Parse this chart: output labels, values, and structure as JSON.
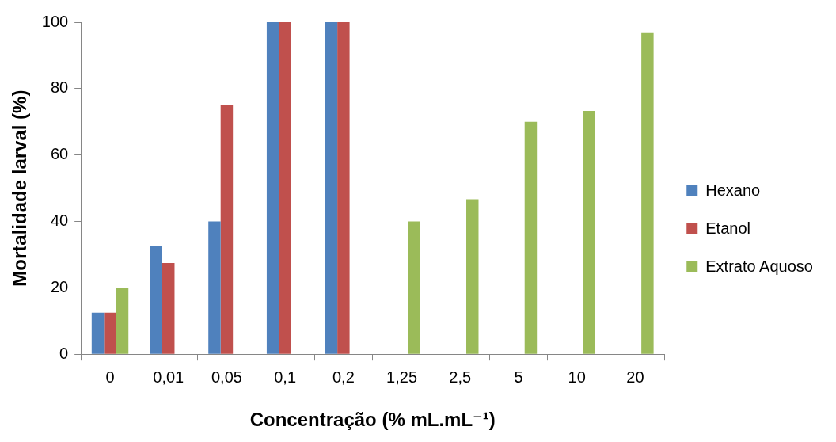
{
  "chart_data": {
    "type": "bar",
    "xlabel": "Concentração (% mL.mL⁻¹)",
    "ylabel": "Mortalidade larval (%)",
    "categories": [
      "0",
      "0,01",
      "0,05",
      "0,1",
      "0,2",
      "1,25",
      "2,5",
      "5",
      "10",
      "20"
    ],
    "series": [
      {
        "name": "Hexano",
        "color": "#4f81bd",
        "values": [
          12.5,
          32.5,
          40,
          100,
          100,
          null,
          null,
          null,
          null,
          null
        ]
      },
      {
        "name": "Etanol",
        "color": "#c0504d",
        "values": [
          12.5,
          27.5,
          75,
          100,
          100,
          null,
          null,
          null,
          null,
          null
        ]
      },
      {
        "name": "Extrato Aquoso",
        "color": "#9bbb59",
        "values": [
          20,
          null,
          null,
          null,
          null,
          40,
          46.7,
          70,
          73.3,
          96.7
        ]
      }
    ],
    "ylim": [
      0,
      100
    ],
    "yticks": [
      0,
      20,
      40,
      60,
      80,
      100
    ],
    "grid": false,
    "legend": "right"
  }
}
